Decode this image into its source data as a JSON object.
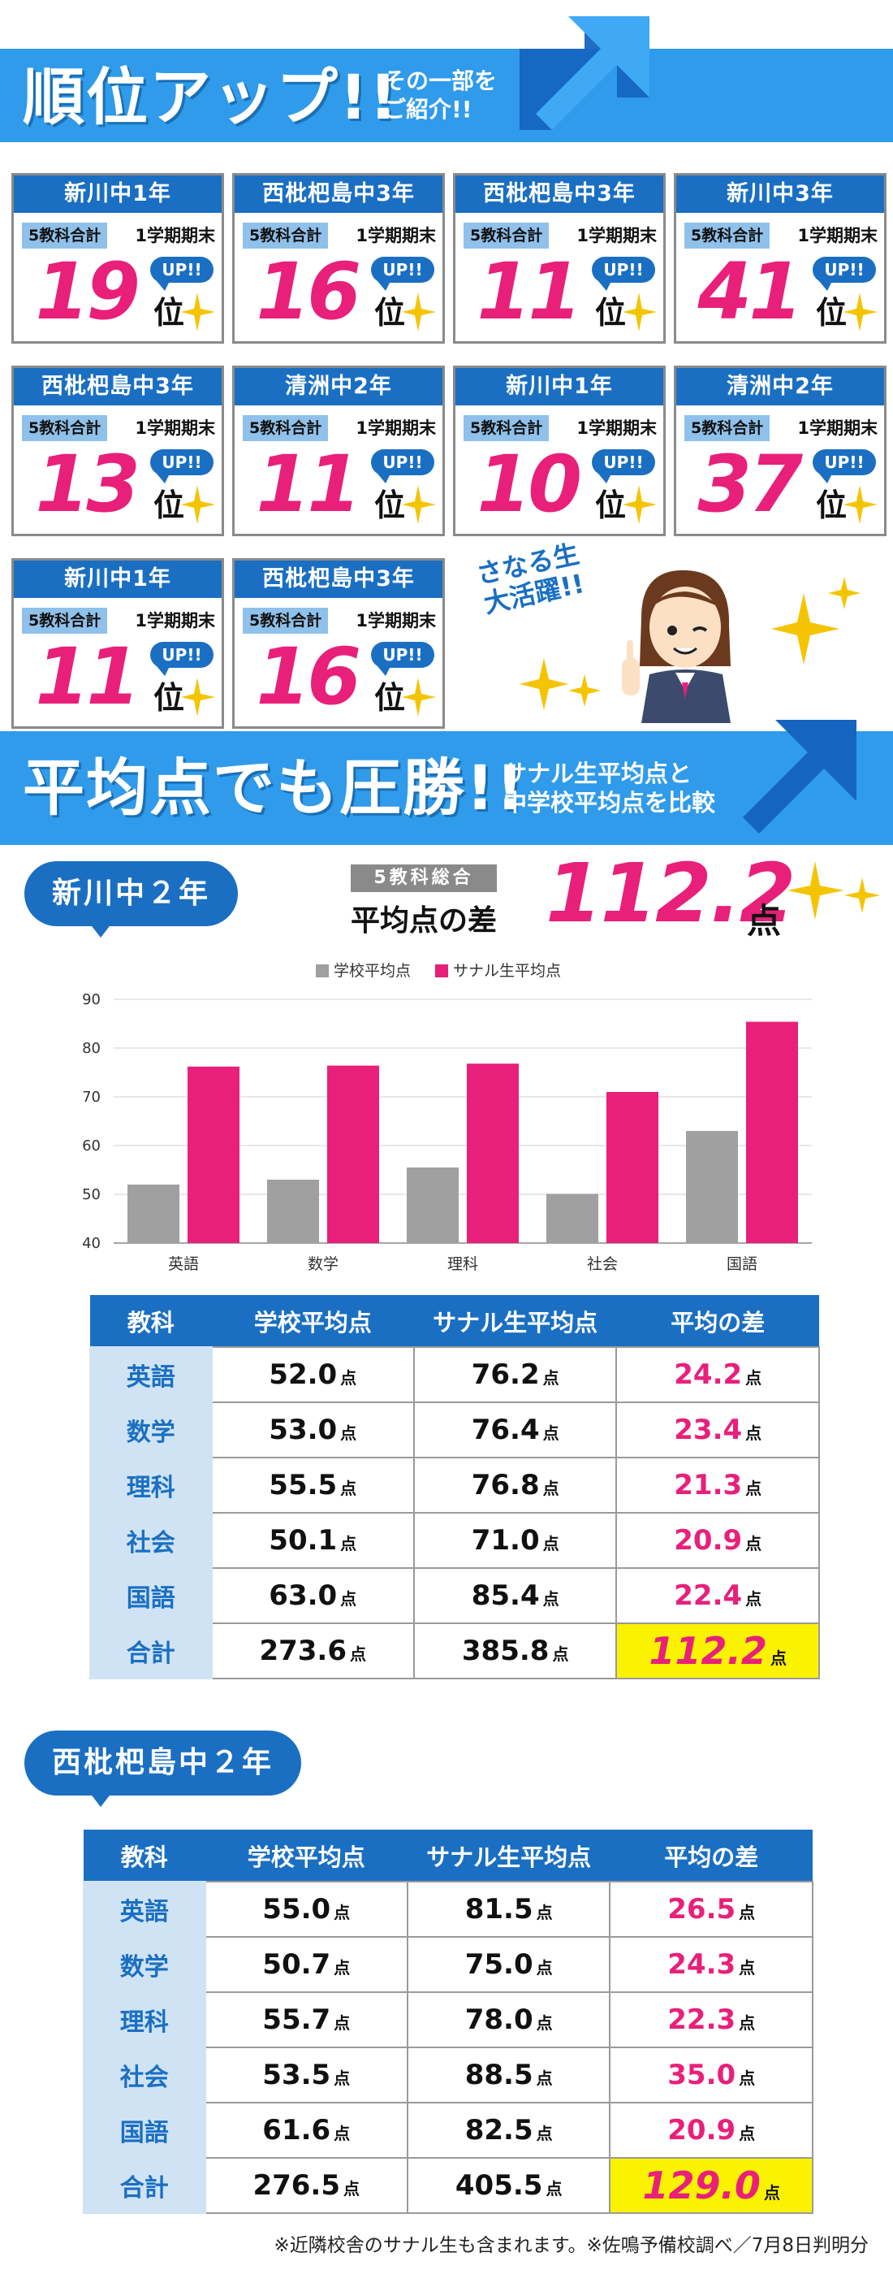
{
  "banner_rank": {
    "title": "順位アップ!!",
    "subtitle_line1": "その一部を",
    "subtitle_line2": "ご紹介!!"
  },
  "rank_cards": [
    {
      "school": "新川中1年",
      "label": "5教科合計",
      "term": "1学期期末",
      "up": "UP!!",
      "rank": "19",
      "unit": "位"
    },
    {
      "school": "西枇杷島中3年",
      "label": "5教科合計",
      "term": "1学期期末",
      "up": "UP!!",
      "rank": "16",
      "unit": "位"
    },
    {
      "school": "西枇杷島中3年",
      "label": "5教科合計",
      "term": "1学期期末",
      "up": "UP!!",
      "rank": "11",
      "unit": "位"
    },
    {
      "school": "新川中3年",
      "label": "5教科合計",
      "term": "1学期期末",
      "up": "UP!!",
      "rank": "41",
      "unit": "位"
    },
    {
      "school": "西枇杷島中3年",
      "label": "5教科合計",
      "term": "1学期期末",
      "up": "UP!!",
      "rank": "13",
      "unit": "位"
    },
    {
      "school": "清洲中2年",
      "label": "5教科合計",
      "term": "1学期期末",
      "up": "UP!!",
      "rank": "11",
      "unit": "位"
    },
    {
      "school": "新川中1年",
      "label": "5教科合計",
      "term": "1学期期末",
      "up": "UP!!",
      "rank": "10",
      "unit": "位"
    },
    {
      "school": "清洲中2年",
      "label": "5教科合計",
      "term": "1学期期末",
      "up": "UP!!",
      "rank": "37",
      "unit": "位"
    },
    {
      "school": "新川中1年",
      "label": "5教科合計",
      "term": "1学期期末",
      "up": "UP!!",
      "rank": "11",
      "unit": "位"
    },
    {
      "school": "西枇杷島中3年",
      "label": "5教科合計",
      "term": "1学期期末",
      "up": "UP!!",
      "rank": "16",
      "unit": "位"
    }
  ],
  "character_badge": {
    "line1": "さなる生",
    "line2": "大活躍!!"
  },
  "banner_avg": {
    "title": "平均点でも圧勝!!",
    "subtitle_line1": "サナル生平均点と",
    "subtitle_line2": "中学校平均点を比較"
  },
  "section1": {
    "school_tab": "新川中２年",
    "total_label": "5教科総合",
    "diff_label": "平均点の差",
    "diff_value": "112.2",
    "diff_unit": "点",
    "table": {
      "headers": [
        "教科",
        "学校平均点",
        "サナル生平均点",
        "平均の差"
      ],
      "unit": "点",
      "rows": [
        {
          "subject": "英語",
          "school": "52.0",
          "sanaru": "76.2",
          "diff": "24.2"
        },
        {
          "subject": "数学",
          "school": "53.0",
          "sanaru": "76.4",
          "diff": "23.4"
        },
        {
          "subject": "理科",
          "school": "55.5",
          "sanaru": "76.8",
          "diff": "21.3"
        },
        {
          "subject": "社会",
          "school": "50.1",
          "sanaru": "71.0",
          "diff": "20.9"
        },
        {
          "subject": "国語",
          "school": "63.0",
          "sanaru": "85.4",
          "diff": "22.4"
        },
        {
          "subject": "合計",
          "school": "273.6",
          "sanaru": "385.8",
          "diff": "112.2"
        }
      ]
    }
  },
  "section2": {
    "school_tab": "西枇杷島中２年",
    "table": {
      "headers": [
        "教科",
        "学校平均点",
        "サナル生平均点",
        "平均の差"
      ],
      "unit": "点",
      "rows": [
        {
          "subject": "英語",
          "school": "55.0",
          "sanaru": "81.5",
          "diff": "26.5"
        },
        {
          "subject": "数学",
          "school": "50.7",
          "sanaru": "75.0",
          "diff": "24.3"
        },
        {
          "subject": "理科",
          "school": "55.7",
          "sanaru": "78.0",
          "diff": "22.3"
        },
        {
          "subject": "社会",
          "school": "53.5",
          "sanaru": "88.5",
          "diff": "35.0"
        },
        {
          "subject": "国語",
          "school": "61.6",
          "sanaru": "82.5",
          "diff": "20.9"
        },
        {
          "subject": "合計",
          "school": "276.5",
          "sanaru": "405.5",
          "diff": "129.0"
        }
      ]
    }
  },
  "chart_data": {
    "type": "bar",
    "categories": [
      "英語",
      "数学",
      "理科",
      "社会",
      "国語"
    ],
    "series": [
      {
        "name": "学校平均点",
        "values": [
          52.0,
          53.0,
          55.5,
          50.1,
          63.0
        ],
        "color": "#a0a0a0"
      },
      {
        "name": "サナル生平均点",
        "values": [
          76.2,
          76.4,
          76.8,
          71.0,
          85.4
        ],
        "color": "#e8207a"
      }
    ],
    "ylim": [
      40,
      90
    ],
    "yticks": [
      "40",
      "50",
      "60",
      "70",
      "80",
      "90"
    ],
    "grid": true,
    "legend": "top-center"
  },
  "footnote": "※近隣校舎のサナル生も含まれます。※佐鳴予備校調べ／7月8日判明分",
  "colors": {
    "brand_blue": "#1a6fc2",
    "sky_blue": "#2f9bea",
    "accent_pink": "#e8207a",
    "highlight_yellow": "#fbf200"
  }
}
